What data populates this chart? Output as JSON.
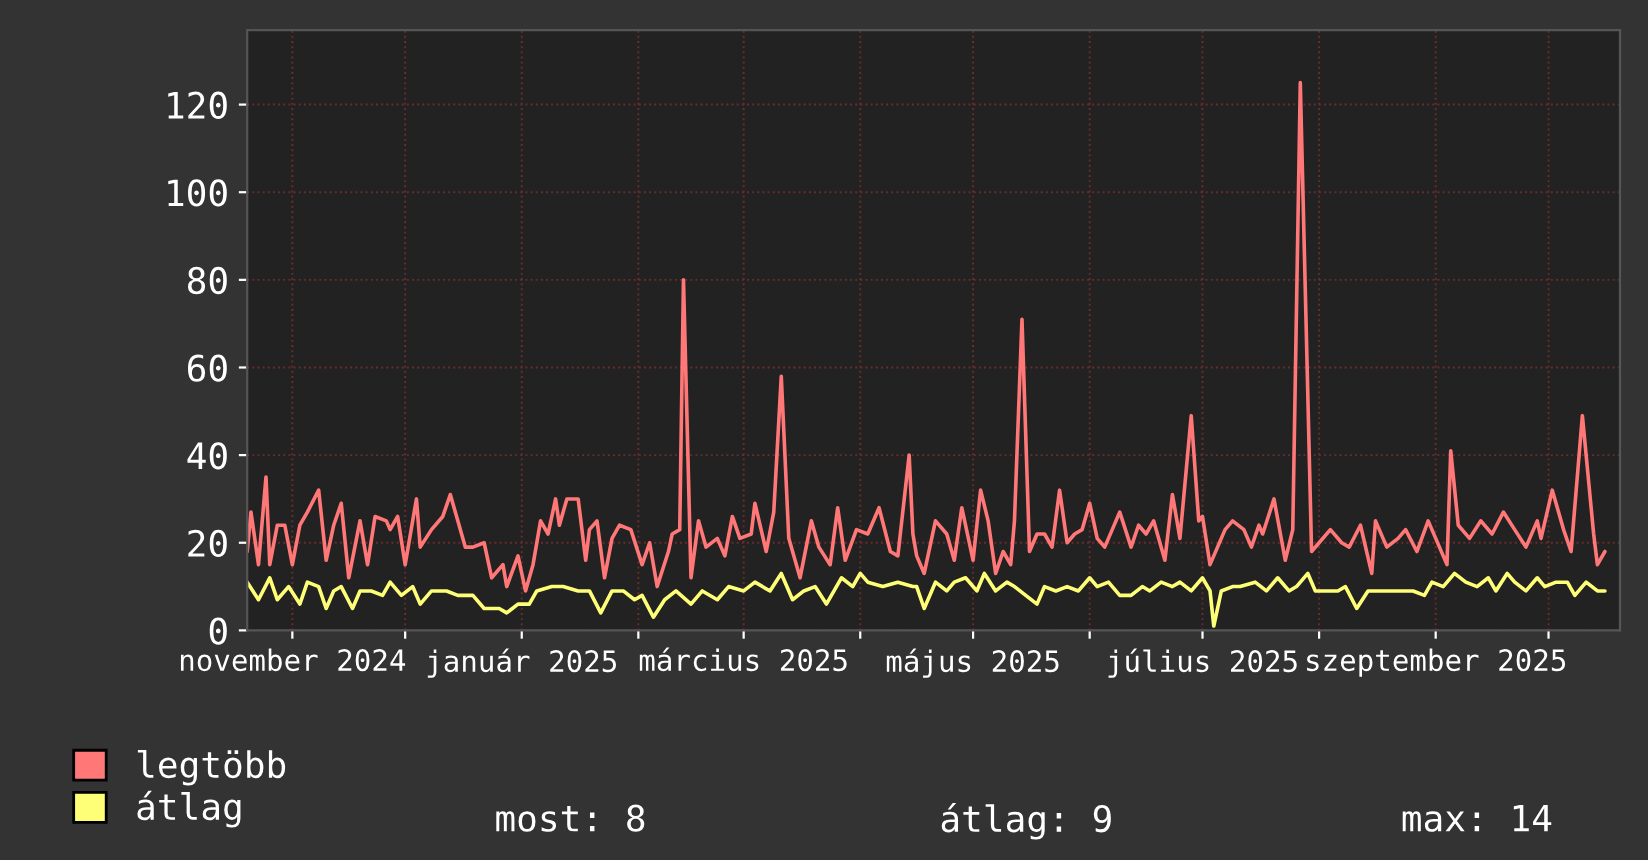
{
  "chart_data": {
    "type": "line",
    "xlim": [
      "2024-10-20",
      "2025-10-20"
    ],
    "xticks": [
      {
        "value": "2024-11-01",
        "label": "november 2024"
      },
      {
        "value": "2024-12-01",
        "label": null
      },
      {
        "value": "2025-01-01",
        "label": "január 2025"
      },
      {
        "value": "2025-02-01",
        "label": null
      },
      {
        "value": "2025-03-01",
        "label": "március 2025"
      },
      {
        "value": "2025-04-01",
        "label": null
      },
      {
        "value": "2025-05-01",
        "label": "május 2025"
      },
      {
        "value": "2025-06-01",
        "label": null
      },
      {
        "value": "2025-07-01",
        "label": "július 2025"
      },
      {
        "value": "2025-08-01",
        "label": null
      },
      {
        "value": "2025-09-01",
        "label": "szeptember 2025"
      },
      {
        "value": "2025-10-01",
        "label": null
      }
    ],
    "ylim": [
      0,
      137
    ],
    "yticks": [
      0,
      20,
      40,
      60,
      80,
      100,
      120
    ],
    "grid": true,
    "legend": "bottom left",
    "annotations": [
      "most: 8",
      "átlag: 9",
      "max: 14"
    ],
    "series": [
      {
        "name": "legtöbb",
        "color": "#ff7777",
        "x": [
          "2024-10-20",
          "2024-10-21",
          "2024-10-23",
          "2024-10-25",
          "2024-10-26",
          "2024-10-28",
          "2024-10-30",
          "2024-11-01",
          "2024-11-03",
          "2024-11-05",
          "2024-11-08",
          "2024-11-10",
          "2024-11-12",
          "2024-11-14",
          "2024-11-16",
          "2024-11-19",
          "2024-11-21",
          "2024-11-23",
          "2024-11-26",
          "2024-11-27",
          "2024-11-29",
          "2024-12-01",
          "2024-12-04",
          "2024-12-05",
          "2024-12-08",
          "2024-12-11",
          "2024-12-13",
          "2024-12-15",
          "2024-12-17",
          "2024-12-19",
          "2024-12-22",
          "2024-12-24",
          "2024-12-27",
          "2024-12-28",
          "2024-12-31",
          "2025-01-02",
          "2025-01-04",
          "2025-01-06",
          "2025-01-08",
          "2025-01-10",
          "2025-01-11",
          "2025-01-13",
          "2025-01-16",
          "2025-01-18",
          "2025-01-19",
          "2025-01-21",
          "2025-01-23",
          "2025-01-25",
          "2025-01-27",
          "2025-01-30",
          "2025-02-02",
          "2025-02-04",
          "2025-02-06",
          "2025-02-09",
          "2025-02-10",
          "2025-02-12",
          "2025-02-13",
          "2025-02-15",
          "2025-02-17",
          "2025-02-19",
          "2025-02-22",
          "2025-02-24",
          "2025-02-26",
          "2025-02-28",
          "2025-03-03",
          "2025-03-04",
          "2025-03-07",
          "2025-03-09",
          "2025-03-11",
          "2025-03-13",
          "2025-03-16",
          "2025-03-19",
          "2025-03-21",
          "2025-03-24",
          "2025-03-26",
          "2025-03-28",
          "2025-03-31",
          "2025-04-03",
          "2025-04-06",
          "2025-04-09",
          "2025-04-11",
          "2025-04-14",
          "2025-04-15",
          "2025-04-16",
          "2025-04-18",
          "2025-04-21",
          "2025-04-24",
          "2025-04-26",
          "2025-04-28",
          "2025-05-01",
          "2025-05-03",
          "2025-05-05",
          "2025-05-07",
          "2025-05-09",
          "2025-05-11",
          "2025-05-12",
          "2025-05-14",
          "2025-05-16",
          "2025-05-18",
          "2025-05-20",
          "2025-05-22",
          "2025-05-24",
          "2025-05-26",
          "2025-05-28",
          "2025-05-30",
          "2025-06-01",
          "2025-06-03",
          "2025-06-05",
          "2025-06-07",
          "2025-06-09",
          "2025-06-12",
          "2025-06-14",
          "2025-06-16",
          "2025-06-18",
          "2025-06-21",
          "2025-06-23",
          "2025-06-25",
          "2025-06-28",
          "2025-06-30",
          "2025-07-01",
          "2025-07-03",
          "2025-07-05",
          "2025-07-07",
          "2025-07-09",
          "2025-07-12",
          "2025-07-14",
          "2025-07-16",
          "2025-07-17",
          "2025-07-20",
          "2025-07-23",
          "2025-07-25",
          "2025-07-27",
          "2025-07-30",
          "2025-08-01",
          "2025-08-04",
          "2025-08-07",
          "2025-08-09",
          "2025-08-12",
          "2025-08-15",
          "2025-08-16",
          "2025-08-19",
          "2025-08-22",
          "2025-08-24",
          "2025-08-27",
          "2025-08-30",
          "2025-09-01",
          "2025-09-04",
          "2025-09-05",
          "2025-09-07",
          "2025-09-10",
          "2025-09-13",
          "2025-09-16",
          "2025-09-19",
          "2025-09-22",
          "2025-09-25",
          "2025-09-28",
          "2025-09-29",
          "2025-10-02",
          "2025-10-05",
          "2025-10-07",
          "2025-10-10",
          "2025-10-13",
          "2025-10-14",
          "2025-10-16"
        ],
        "values": [
          18,
          27,
          15,
          35,
          15,
          24,
          24,
          15,
          24,
          27,
          32,
          16,
          24,
          29,
          12,
          25,
          15,
          26,
          25,
          23,
          26,
          15,
          30,
          19,
          23,
          26,
          31,
          25,
          19,
          19,
          20,
          12,
          15,
          10,
          17,
          9,
          15,
          25,
          22,
          30,
          24,
          30,
          30,
          16,
          23,
          25,
          12,
          21,
          24,
          23,
          15,
          20,
          10,
          18,
          22,
          23,
          80,
          12,
          25,
          19,
          21,
          17,
          26,
          21,
          22,
          29,
          18,
          27,
          58,
          21,
          12,
          25,
          19,
          15,
          28,
          16,
          23,
          22,
          28,
          18,
          17,
          40,
          22,
          17,
          13,
          25,
          22,
          16,
          28,
          16,
          32,
          25,
          13,
          18,
          15,
          25,
          71,
          18,
          22,
          22,
          19,
          32,
          20,
          22,
          23,
          29,
          21,
          19,
          23,
          27,
          19,
          24,
          22,
          25,
          16,
          31,
          21,
          49,
          25,
          26,
          15,
          19,
          23,
          25,
          23,
          19,
          24,
          22,
          30,
          16,
          23,
          125,
          18,
          20,
          23,
          20,
          19,
          24,
          13,
          25,
          19,
          21,
          23,
          18,
          25,
          21,
          15,
          41,
          24,
          21,
          25,
          22,
          27,
          23,
          19,
          25,
          21,
          32,
          23,
          18,
          49,
          22,
          15,
          18
        ]
      },
      {
        "name": "átlag",
        "color": "#ffff77",
        "x": [
          "2024-10-20",
          "2024-10-23",
          "2024-10-26",
          "2024-10-28",
          "2024-10-31",
          "2024-11-03",
          "2024-11-05",
          "2024-11-08",
          "2024-11-10",
          "2024-11-12",
          "2024-11-14",
          "2024-11-17",
          "2024-11-19",
          "2024-11-22",
          "2024-11-25",
          "2024-11-27",
          "2024-11-30",
          "2024-12-03",
          "2024-12-05",
          "2024-12-08",
          "2024-12-12",
          "2024-12-15",
          "2024-12-19",
          "2024-12-22",
          "2024-12-26",
          "2024-12-28",
          "2024-12-31",
          "2025-01-03",
          "2025-01-05",
          "2025-01-09",
          "2025-01-12",
          "2025-01-16",
          "2025-01-19",
          "2025-01-22",
          "2025-01-25",
          "2025-01-28",
          "2025-01-31",
          "2025-02-02",
          "2025-02-05",
          "2025-02-08",
          "2025-02-11",
          "2025-02-15",
          "2025-02-18",
          "2025-02-22",
          "2025-02-25",
          "2025-03-01",
          "2025-03-04",
          "2025-03-08",
          "2025-03-11",
          "2025-03-14",
          "2025-03-17",
          "2025-03-20",
          "2025-03-23",
          "2025-03-27",
          "2025-03-30",
          "2025-04-01",
          "2025-04-03",
          "2025-04-07",
          "2025-04-11",
          "2025-04-15",
          "2025-04-16",
          "2025-04-18",
          "2025-04-21",
          "2025-04-24",
          "2025-04-26",
          "2025-04-29",
          "2025-05-02",
          "2025-05-04",
          "2025-05-07",
          "2025-05-10",
          "2025-05-12",
          "2025-05-15",
          "2025-05-18",
          "2025-05-20",
          "2025-05-23",
          "2025-05-26",
          "2025-05-29",
          "2025-06-01",
          "2025-06-03",
          "2025-06-06",
          "2025-06-09",
          "2025-06-12",
          "2025-06-15",
          "2025-06-17",
          "2025-06-20",
          "2025-06-23",
          "2025-06-25",
          "2025-06-28",
          "2025-07-01",
          "2025-07-03",
          "2025-07-04",
          "2025-07-06",
          "2025-07-09",
          "2025-07-11",
          "2025-07-15",
          "2025-07-18",
          "2025-07-21",
          "2025-07-24",
          "2025-07-26",
          "2025-07-29",
          "2025-07-31",
          "2025-08-03",
          "2025-08-06",
          "2025-08-08",
          "2025-08-11",
          "2025-08-14",
          "2025-08-16",
          "2025-08-19",
          "2025-08-23",
          "2025-08-26",
          "2025-08-29",
          "2025-08-31",
          "2025-09-03",
          "2025-09-06",
          "2025-09-09",
          "2025-09-12",
          "2025-09-15",
          "2025-09-17",
          "2025-09-20",
          "2025-09-22",
          "2025-09-25",
          "2025-09-28",
          "2025-09-30",
          "2025-10-03",
          "2025-10-06",
          "2025-10-08",
          "2025-10-11",
          "2025-10-14",
          "2025-10-16"
        ],
        "values": [
          11,
          7,
          12,
          7,
          10,
          6,
          11,
          10,
          5,
          9,
          10,
          5,
          9,
          9,
          8,
          11,
          8,
          10,
          6,
          9,
          9,
          8,
          8,
          5,
          5,
          4,
          6,
          6,
          9,
          10,
          10,
          9,
          9,
          4,
          9,
          9,
          7,
          8,
          3,
          7,
          9,
          6,
          9,
          7,
          10,
          9,
          11,
          9,
          13,
          7,
          9,
          10,
          6,
          12,
          10,
          13,
          11,
          10,
          11,
          10,
          10,
          5,
          11,
          9,
          11,
          12,
          9,
          13,
          9,
          11,
          10,
          8,
          6,
          10,
          9,
          10,
          9,
          12,
          10,
          11,
          8,
          8,
          10,
          9,
          11,
          10,
          11,
          9,
          12,
          9,
          1,
          9,
          10,
          10,
          11,
          9,
          12,
          9,
          10,
          13,
          9,
          9,
          9,
          10,
          5,
          9,
          9,
          9,
          9,
          9,
          8,
          11,
          10,
          13,
          11,
          10,
          12,
          9,
          13,
          11,
          9,
          12,
          10,
          11,
          11,
          8,
          11,
          9,
          9
        ]
      }
    ]
  }
}
